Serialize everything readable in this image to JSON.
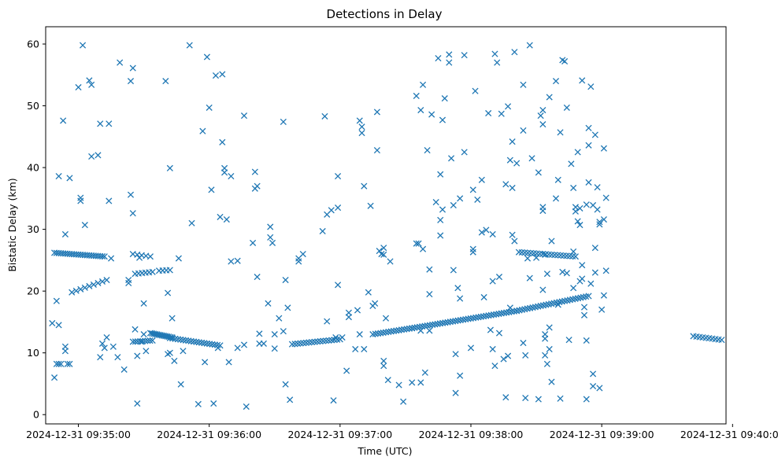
{
  "chart_data": {
    "type": "scatter",
    "title": "Detections in Delay",
    "xlabel": "Time (UTC)",
    "ylabel": "Bistatic Delay (km)",
    "marker": "x",
    "color": "#1f77b4",
    "grid": false,
    "x_unit": "seconds after 2024-12-31 09:34:45 UTC",
    "xlim": [
      0,
      312
    ],
    "ylim": [
      -1.5,
      62.8
    ],
    "xticks": [
      {
        "value": 15,
        "label": "2024-12-31 09:35:00"
      },
      {
        "value": 75,
        "label": "2024-12-31 09:36:00"
      },
      {
        "value": 135,
        "label": "2024-12-31 09:37:00"
      },
      {
        "value": 195,
        "label": "2024-12-31 09:38:00"
      },
      {
        "value": 255,
        "label": "2024-12-31 09:39:00"
      },
      {
        "value": 315,
        "label": "2024-12-31 09:40:00"
      }
    ],
    "yticks": [
      {
        "value": 0,
        "label": "0"
      },
      {
        "value": 10,
        "label": "10"
      },
      {
        "value": 20,
        "label": "20"
      },
      {
        "value": 30,
        "label": "30"
      },
      {
        "value": 40,
        "label": "40"
      },
      {
        "value": 50,
        "label": "50"
      },
      {
        "value": 60,
        "label": "60"
      }
    ],
    "tracks": [
      {
        "name": "track-a",
        "x_start": 4,
        "x_end": 27,
        "y_start": 26.2,
        "y_end": 25.6,
        "count": 24
      },
      {
        "name": "track-b",
        "x_start": 40,
        "x_end": 48,
        "y_start": 26.0,
        "y_end": 25.6,
        "count": 5
      },
      {
        "name": "track-c",
        "x_start": 41,
        "x_end": 49,
        "y_start": 22.8,
        "y_end": 23.1,
        "count": 6
      },
      {
        "name": "track-d",
        "x_start": 52,
        "x_end": 57,
        "y_start": 23.3,
        "y_end": 23.4,
        "count": 4
      },
      {
        "name": "track-e",
        "x_start": 12,
        "x_end": 28,
        "y_start": 19.8,
        "y_end": 21.8,
        "count": 9
      },
      {
        "name": "track-f",
        "x_start": 40,
        "x_end": 49,
        "y_start": 11.8,
        "y_end": 12.0,
        "count": 9
      },
      {
        "name": "track-g",
        "x_start": 48,
        "x_end": 58,
        "y_start": 13.2,
        "y_end": 12.5,
        "count": 14
      },
      {
        "name": "track-h",
        "x_start": 57,
        "x_end": 80,
        "y_start": 12.4,
        "y_end": 11.2,
        "count": 20
      },
      {
        "name": "track-i",
        "x_start": 113,
        "x_end": 135,
        "y_start": 11.4,
        "y_end": 12.2,
        "count": 18
      },
      {
        "name": "track-j",
        "x_start": 150,
        "x_end": 168,
        "y_start": 13.0,
        "y_end": 14.0,
        "count": 16
      },
      {
        "name": "track-k",
        "x_start": 168,
        "x_end": 216,
        "y_start": 14.0,
        "y_end": 16.8,
        "count": 42
      },
      {
        "name": "track-l",
        "x_start": 216,
        "x_end": 249,
        "y_start": 16.8,
        "y_end": 19.2,
        "count": 28
      },
      {
        "name": "track-m",
        "x_start": 217,
        "x_end": 243,
        "y_start": 26.3,
        "y_end": 25.6,
        "count": 20
      },
      {
        "name": "track-n",
        "x_start": 297,
        "x_end": 310,
        "y_start": 12.7,
        "y_end": 12.1,
        "count": 10
      }
    ],
    "scatter_points": [
      [
        3,
        14.8
      ],
      [
        4,
        6.0
      ],
      [
        5,
        8.2
      ],
      [
        5,
        18.4
      ],
      [
        6,
        8.2
      ],
      [
        6,
        14.5
      ],
      [
        6,
        38.6
      ],
      [
        7,
        8.2
      ],
      [
        8,
        47.6
      ],
      [
        9,
        29.2
      ],
      [
        9,
        10.3
      ],
      [
        9,
        11.0
      ],
      [
        10,
        8.2
      ],
      [
        11,
        8.2
      ],
      [
        11,
        38.3
      ],
      [
        15,
        53.0
      ],
      [
        16,
        34.6
      ],
      [
        16,
        35.1
      ],
      [
        17,
        59.8
      ],
      [
        18,
        30.7
      ],
      [
        20,
        54.1
      ],
      [
        21,
        41.8
      ],
      [
        21,
        53.4
      ],
      [
        24,
        42.0
      ],
      [
        25,
        47.1
      ],
      [
        25,
        9.3
      ],
      [
        26,
        11.5
      ],
      [
        27,
        10.8
      ],
      [
        28,
        12.5
      ],
      [
        29,
        34.6
      ],
      [
        29,
        47.1
      ],
      [
        30,
        25.3
      ],
      [
        31,
        11.0
      ],
      [
        33,
        9.3
      ],
      [
        34,
        57.0
      ],
      [
        36,
        7.3
      ],
      [
        38,
        21.8
      ],
      [
        38,
        21.3
      ],
      [
        39,
        35.6
      ],
      [
        39,
        54.0
      ],
      [
        40,
        56.1
      ],
      [
        40,
        32.6
      ],
      [
        41,
        13.8
      ],
      [
        42,
        1.8
      ],
      [
        42,
        9.5
      ],
      [
        43,
        25.4
      ],
      [
        44,
        11.8
      ],
      [
        45,
        18.0
      ],
      [
        45,
        13.0
      ],
      [
        46,
        10.3
      ],
      [
        55,
        54.0
      ],
      [
        56,
        9.8
      ],
      [
        56,
        19.7
      ],
      [
        57,
        39.9
      ],
      [
        57,
        10.0
      ],
      [
        58,
        15.6
      ],
      [
        59,
        8.7
      ],
      [
        61,
        25.3
      ],
      [
        62,
        4.9
      ],
      [
        63,
        10.3
      ],
      [
        66,
        59.8
      ],
      [
        67,
        31.0
      ],
      [
        70,
        1.7
      ],
      [
        72,
        45.9
      ],
      [
        73,
        8.5
      ],
      [
        74,
        57.9
      ],
      [
        75,
        49.7
      ],
      [
        76,
        36.4
      ],
      [
        77,
        1.8
      ],
      [
        78,
        54.9
      ],
      [
        79,
        10.8
      ],
      [
        80,
        32.0
      ],
      [
        81,
        55.1
      ],
      [
        81,
        44.1
      ],
      [
        82,
        39.9
      ],
      [
        82,
        39.2
      ],
      [
        83,
        31.6
      ],
      [
        84,
        8.5
      ],
      [
        85,
        24.8
      ],
      [
        85,
        38.6
      ],
      [
        88,
        24.9
      ],
      [
        88,
        10.8
      ],
      [
        91,
        48.4
      ],
      [
        91,
        11.3
      ],
      [
        92,
        1.3
      ],
      [
        95,
        27.8
      ],
      [
        96,
        39.3
      ],
      [
        96,
        36.6
      ],
      [
        97,
        22.3
      ],
      [
        97,
        37.0
      ],
      [
        98,
        13.1
      ],
      [
        98,
        11.5
      ],
      [
        100,
        11.5
      ],
      [
        102,
        18.0
      ],
      [
        103,
        30.4
      ],
      [
        103,
        28.7
      ],
      [
        104,
        27.8
      ],
      [
        105,
        10.7
      ],
      [
        105,
        13.0
      ],
      [
        107,
        15.6
      ],
      [
        109,
        47.4
      ],
      [
        109,
        13.5
      ],
      [
        110,
        21.8
      ],
      [
        110,
        4.9
      ],
      [
        111,
        17.3
      ],
      [
        112,
        2.4
      ],
      [
        116,
        24.8
      ],
      [
        116,
        25.3
      ],
      [
        118,
        26.0
      ],
      [
        127,
        29.7
      ],
      [
        128,
        48.3
      ],
      [
        129,
        15.1
      ],
      [
        129,
        32.4
      ],
      [
        131,
        33.1
      ],
      [
        132,
        2.3
      ],
      [
        133,
        12.5
      ],
      [
        134,
        21.0
      ],
      [
        134,
        38.6
      ],
      [
        134,
        33.5
      ],
      [
        136,
        12.5
      ],
      [
        138,
        7.1
      ],
      [
        139,
        15.8
      ],
      [
        139,
        16.5
      ],
      [
        142,
        10.6
      ],
      [
        143,
        16.9
      ],
      [
        144,
        13.0
      ],
      [
        144,
        47.6
      ],
      [
        145,
        46.6
      ],
      [
        145,
        45.6
      ],
      [
        146,
        37.0
      ],
      [
        146,
        10.6
      ],
      [
        148,
        19.8
      ],
      [
        149,
        33.8
      ],
      [
        150,
        17.6
      ],
      [
        151,
        18.0
      ],
      [
        152,
        49.0
      ],
      [
        152,
        42.8
      ],
      [
        153,
        26.5
      ],
      [
        154,
        26.0
      ],
      [
        155,
        27.0
      ],
      [
        155,
        25.9
      ],
      [
        155,
        7.9
      ],
      [
        155,
        8.7
      ],
      [
        156,
        15.6
      ],
      [
        157,
        5.6
      ],
      [
        158,
        24.8
      ],
      [
        162,
        4.8
      ],
      [
        164,
        2.1
      ],
      [
        168,
        5.2
      ],
      [
        170,
        27.7
      ],
      [
        170,
        51.6
      ],
      [
        171,
        27.7
      ],
      [
        172,
        5.2
      ],
      [
        172,
        13.6
      ],
      [
        172,
        49.3
      ],
      [
        173,
        53.4
      ],
      [
        173,
        26.8
      ],
      [
        174,
        6.8
      ],
      [
        175,
        42.8
      ],
      [
        176,
        13.6
      ],
      [
        176,
        19.5
      ],
      [
        176,
        23.5
      ],
      [
        177,
        48.6
      ],
      [
        179,
        34.4
      ],
      [
        180,
        57.7
      ],
      [
        181,
        29.0
      ],
      [
        181,
        38.9
      ],
      [
        181,
        31.5
      ],
      [
        182,
        47.7
      ],
      [
        182,
        33.2
      ],
      [
        183,
        51.2
      ],
      [
        185,
        57.0
      ],
      [
        185,
        58.3
      ],
      [
        186,
        41.5
      ],
      [
        187,
        23.4
      ],
      [
        187,
        33.9
      ],
      [
        188,
        3.5
      ],
      [
        188,
        9.8
      ],
      [
        189,
        20.5
      ],
      [
        190,
        6.3
      ],
      [
        190,
        18.8
      ],
      [
        190,
        35.0
      ],
      [
        192,
        42.5
      ],
      [
        192,
        58.2
      ],
      [
        195,
        10.8
      ],
      [
        196,
        36.4
      ],
      [
        196,
        26.8
      ],
      [
        196,
        26.3
      ],
      [
        197,
        52.4
      ],
      [
        198,
        34.8
      ],
      [
        200,
        29.5
      ],
      [
        200,
        38.0
      ],
      [
        201,
        19.0
      ],
      [
        202,
        29.9
      ],
      [
        203,
        48.8
      ],
      [
        204,
        13.7
      ],
      [
        205,
        29.2
      ],
      [
        205,
        21.6
      ],
      [
        205,
        10.6
      ],
      [
        206,
        58.4
      ],
      [
        206,
        7.9
      ],
      [
        207,
        57.0
      ],
      [
        208,
        22.3
      ],
      [
        208,
        13.2
      ],
      [
        209,
        48.7
      ],
      [
        210,
        9.0
      ],
      [
        211,
        2.8
      ],
      [
        211,
        37.3
      ],
      [
        212,
        49.9
      ],
      [
        212,
        9.5
      ],
      [
        213,
        41.2
      ],
      [
        213,
        17.3
      ],
      [
        214,
        36.7
      ],
      [
        214,
        29.1
      ],
      [
        214,
        44.2
      ],
      [
        215,
        58.7
      ],
      [
        215,
        28.1
      ],
      [
        216,
        40.7
      ],
      [
        219,
        11.6
      ],
      [
        219,
        46.0
      ],
      [
        219,
        53.4
      ],
      [
        220,
        9.6
      ],
      [
        220,
        2.7
      ],
      [
        221,
        25.3
      ],
      [
        222,
        59.8
      ],
      [
        222,
        22.1
      ],
      [
        223,
        41.5
      ],
      [
        225,
        25.4
      ],
      [
        226,
        39.2
      ],
      [
        226,
        2.5
      ],
      [
        227,
        48.4
      ],
      [
        228,
        49.3
      ],
      [
        228,
        47.0
      ],
      [
        228,
        33.6
      ],
      [
        228,
        33.0
      ],
      [
        228,
        20.2
      ],
      [
        229,
        25.9
      ],
      [
        229,
        13.0
      ],
      [
        229,
        12.3
      ],
      [
        229,
        9.6
      ],
      [
        230,
        22.8
      ],
      [
        230,
        8.2
      ],
      [
        231,
        51.4
      ],
      [
        231,
        14.1
      ],
      [
        231,
        10.6
      ],
      [
        232,
        5.3
      ],
      [
        232,
        28.1
      ],
      [
        234,
        54.0
      ],
      [
        234,
        35.0
      ],
      [
        235,
        38.0
      ],
      [
        235,
        17.8
      ],
      [
        236,
        2.6
      ],
      [
        236,
        45.7
      ],
      [
        237,
        57.4
      ],
      [
        237,
        23.1
      ],
      [
        238,
        57.2
      ],
      [
        239,
        49.7
      ],
      [
        239,
        22.9
      ],
      [
        240,
        12.1
      ],
      [
        241,
        40.6
      ],
      [
        242,
        36.7
      ],
      [
        242,
        26.4
      ],
      [
        242,
        20.5
      ],
      [
        243,
        33.6
      ],
      [
        243,
        32.9
      ],
      [
        244,
        31.3
      ],
      [
        244,
        42.5
      ],
      [
        245,
        33.4
      ],
      [
        245,
        30.7
      ],
      [
        245,
        21.6
      ],
      [
        246,
        54.1
      ],
      [
        246,
        24.2
      ],
      [
        246,
        22.0
      ],
      [
        247,
        17.4
      ],
      [
        247,
        16.1
      ],
      [
        248,
        2.5
      ],
      [
        248,
        12.0
      ],
      [
        248,
        34.0
      ],
      [
        249,
        43.6
      ],
      [
        249,
        37.6
      ],
      [
        249,
        46.4
      ],
      [
        250,
        53.1
      ],
      [
        250,
        21.2
      ],
      [
        251,
        33.9
      ],
      [
        251,
        6.6
      ],
      [
        251,
        4.6
      ],
      [
        252,
        45.3
      ],
      [
        252,
        27.0
      ],
      [
        252,
        23.0
      ],
      [
        253,
        36.8
      ],
      [
        253,
        33.2
      ],
      [
        254,
        31.2
      ],
      [
        254,
        30.8
      ],
      [
        254,
        4.3
      ],
      [
        255,
        17.0
      ],
      [
        256,
        19.3
      ],
      [
        256,
        31.6
      ],
      [
        256,
        43.1
      ],
      [
        257,
        35.1
      ],
      [
        257,
        23.3
      ]
    ]
  }
}
